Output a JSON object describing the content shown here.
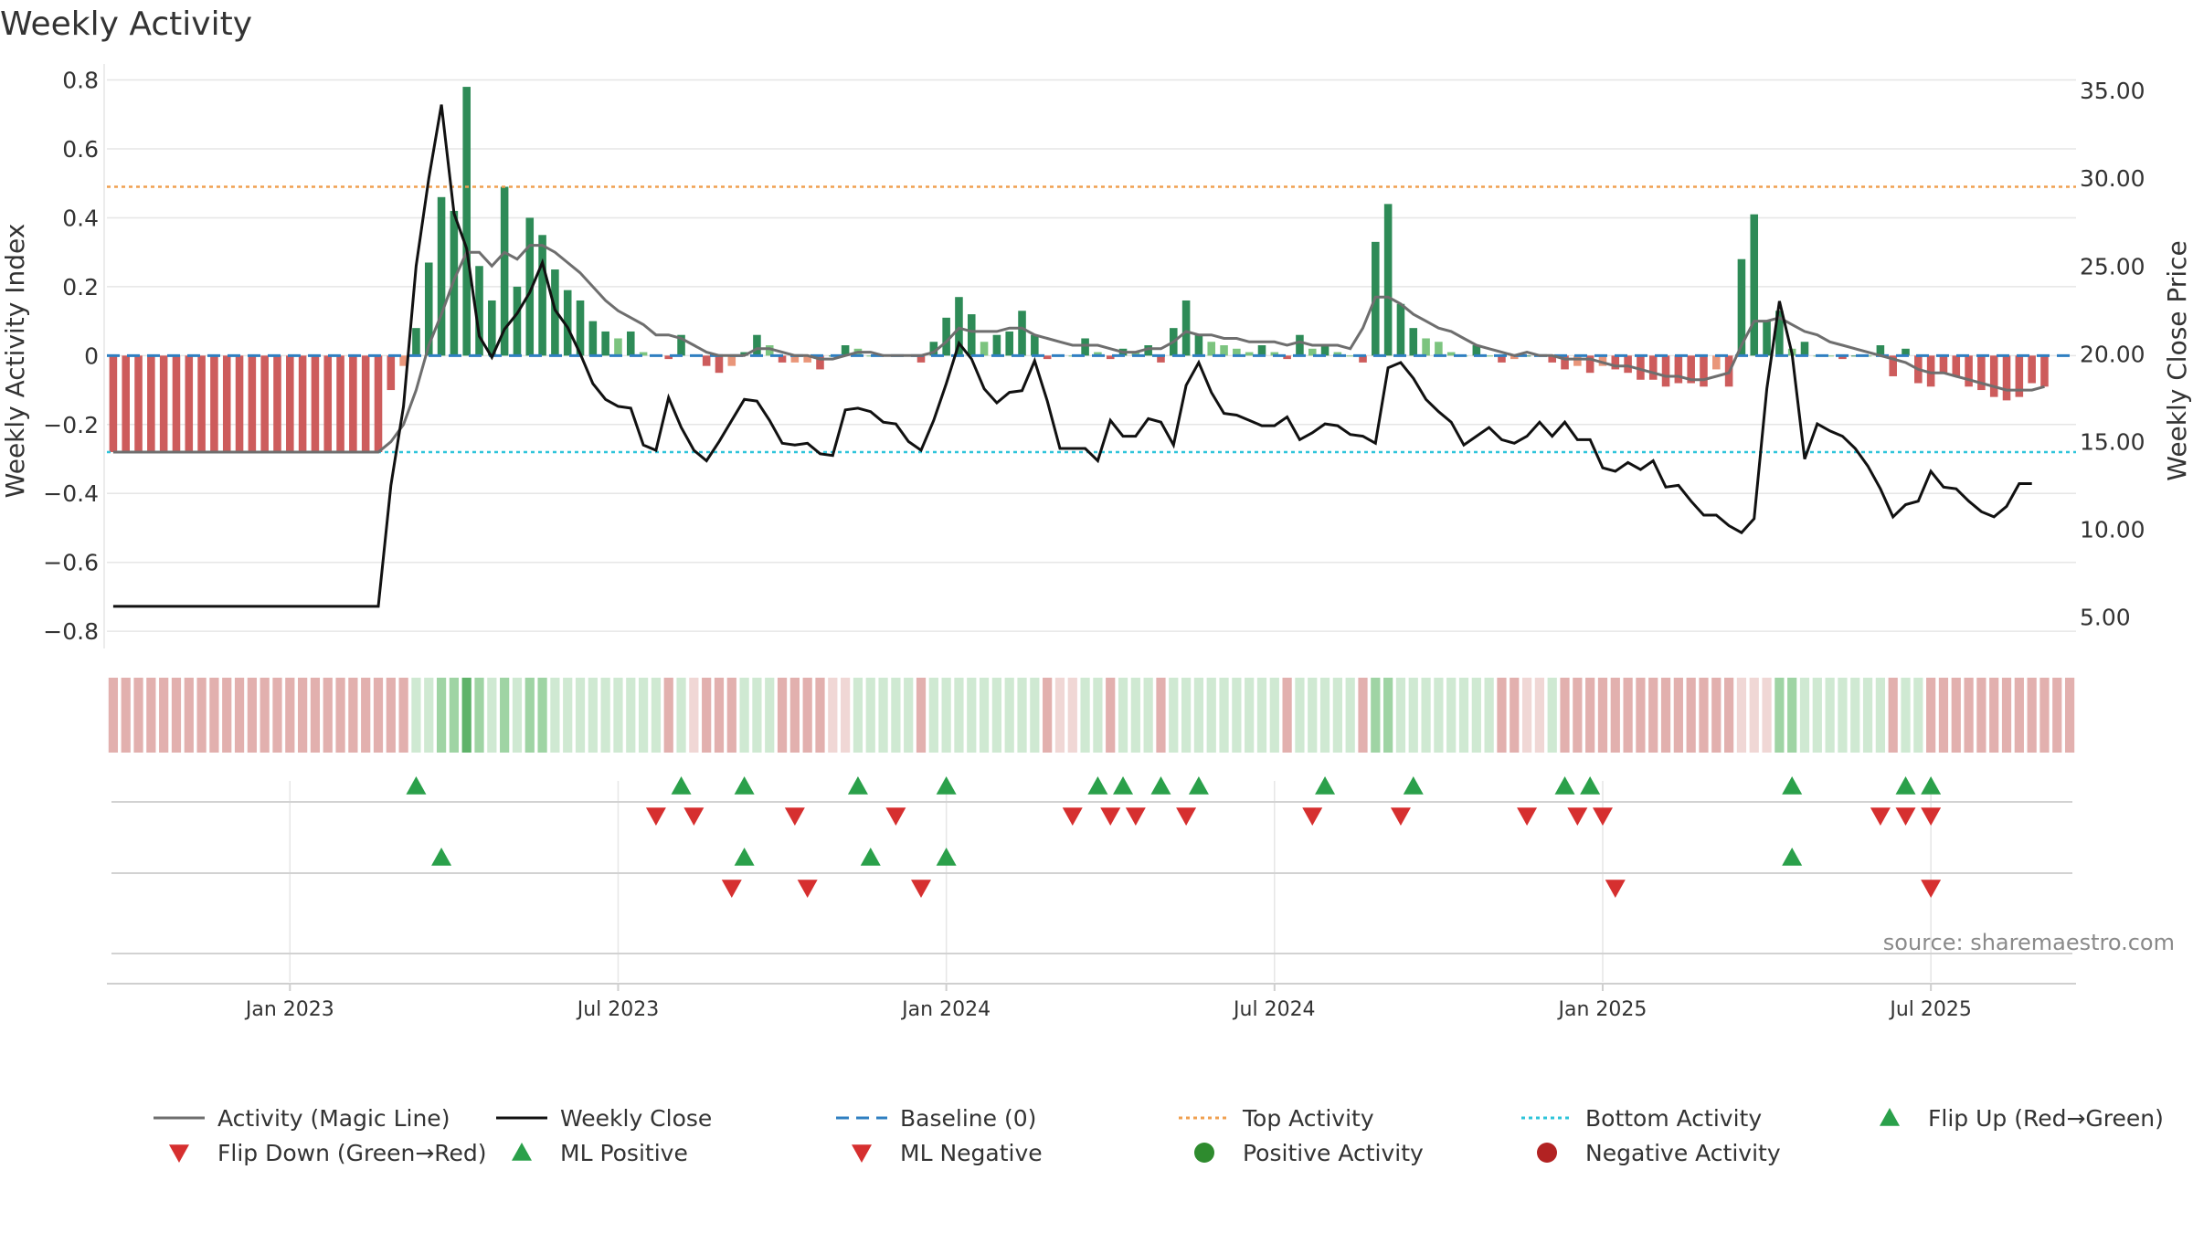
{
  "chart_data": {
    "type": "bar",
    "title": "Weekly Activity",
    "ylabel": "Weekly Activity Index",
    "y2label": "Weekly Close Price",
    "ylim": [
      -0.85,
      0.82
    ],
    "y2lim": [
      3.2,
      36.0
    ],
    "y_ticks": [
      0.8,
      0.6,
      0.4,
      0.2,
      0,
      -0.2,
      -0.4,
      -0.6,
      -0.8
    ],
    "y_tick_labels": [
      "0.8",
      "0.6",
      "0.4",
      "0.2",
      "0",
      "−0.2",
      "−0.4",
      "−0.6",
      "−0.8"
    ],
    "y2_ticks": [
      35,
      30,
      25,
      20,
      15,
      10,
      5
    ],
    "y2_tick_labels": [
      "35.00",
      "30.00",
      "25.00",
      "20.00",
      "15.00",
      "10.00",
      "5.00"
    ],
    "x_ticks": [
      {
        "week": 14,
        "label": "Jan 2023"
      },
      {
        "week": 40,
        "label": "Jul 2023"
      },
      {
        "week": 66,
        "label": "Jan 2024"
      },
      {
        "week": 92,
        "label": "Jul 2024"
      },
      {
        "week": 118,
        "label": "Jan 2025"
      },
      {
        "week": 144,
        "label": "Jul 2025"
      }
    ],
    "weeks": 156,
    "top_activity": 0.49,
    "bottom_activity": -0.28,
    "activity": [
      -0.28,
      -0.28,
      -0.28,
      -0.28,
      -0.28,
      -0.28,
      -0.28,
      -0.28,
      -0.28,
      -0.28,
      -0.28,
      -0.28,
      -0.28,
      -0.28,
      -0.28,
      -0.28,
      -0.28,
      -0.28,
      -0.28,
      -0.28,
      -0.28,
      -0.28,
      -0.1,
      -0.03,
      0.08,
      0.27,
      0.46,
      0.42,
      0.78,
      0.26,
      0.16,
      0.49,
      0.2,
      0.4,
      0.35,
      0.25,
      0.19,
      0.16,
      0.1,
      0.07,
      0.05,
      0.07,
      0.01,
      0.0,
      -0.01,
      0.06,
      0.0,
      -0.03,
      -0.05,
      -0.03,
      0.01,
      0.06,
      0.03,
      -0.02,
      -0.02,
      -0.02,
      -0.04,
      0.0,
      0.03,
      0.02,
      0.0,
      0.0,
      0.0,
      0.0,
      -0.02,
      0.04,
      0.11,
      0.17,
      0.12,
      0.04,
      0.06,
      0.07,
      0.13,
      0.06,
      -0.01,
      0.0,
      0.0,
      0.05,
      0.01,
      -0.01,
      0.02,
      0.01,
      0.03,
      -0.02,
      0.08,
      0.16,
      0.06,
      0.04,
      0.03,
      0.02,
      0.01,
      0.03,
      0.01,
      -0.01,
      0.06,
      0.02,
      0.03,
      0.01,
      0.0,
      -0.02,
      0.33,
      0.44,
      0.15,
      0.08,
      0.05,
      0.04,
      0.01,
      0.0,
      0.03,
      0.0,
      -0.02,
      -0.01,
      0.0,
      0.0,
      -0.02,
      -0.04,
      -0.03,
      -0.05,
      -0.03,
      -0.04,
      -0.05,
      -0.07,
      -0.07,
      -0.09,
      -0.08,
      -0.08,
      -0.09,
      -0.04,
      -0.09,
      0.28,
      0.41,
      0.1,
      0.13,
      0.02,
      0.04,
      0.0,
      0.0,
      -0.01,
      0.0,
      0.0,
      0.03,
      -0.06,
      0.02,
      -0.08,
      -0.09,
      -0.05,
      -0.06,
      -0.09,
      -0.1,
      -0.12,
      -0.13,
      -0.12,
      -0.08,
      -0.09
    ],
    "magic_line": [
      -0.28,
      -0.28,
      -0.28,
      -0.28,
      -0.28,
      -0.28,
      -0.28,
      -0.28,
      -0.28,
      -0.28,
      -0.28,
      -0.28,
      -0.28,
      -0.28,
      -0.28,
      -0.28,
      -0.28,
      -0.28,
      -0.28,
      -0.28,
      -0.28,
      -0.28,
      -0.25,
      -0.2,
      -0.1,
      0.03,
      0.12,
      0.22,
      0.3,
      0.3,
      0.26,
      0.3,
      0.28,
      0.32,
      0.32,
      0.3,
      0.27,
      0.24,
      0.2,
      0.16,
      0.13,
      0.11,
      0.09,
      0.06,
      0.06,
      0.05,
      0.03,
      0.01,
      0.0,
      0.0,
      0.0,
      0.02,
      0.02,
      0.01,
      0.0,
      0.0,
      -0.01,
      -0.01,
      0.0,
      0.01,
      0.01,
      0.0,
      0.0,
      0.0,
      0.0,
      0.01,
      0.04,
      0.08,
      0.07,
      0.07,
      0.07,
      0.08,
      0.08,
      0.06,
      0.05,
      0.04,
      0.03,
      0.03,
      0.03,
      0.02,
      0.01,
      0.01,
      0.02,
      0.02,
      0.04,
      0.07,
      0.06,
      0.06,
      0.05,
      0.05,
      0.04,
      0.04,
      0.04,
      0.03,
      0.04,
      0.03,
      0.03,
      0.03,
      0.02,
      0.08,
      0.17,
      0.17,
      0.15,
      0.12,
      0.1,
      0.08,
      0.07,
      0.05,
      0.03,
      0.02,
      0.01,
      0.0,
      0.01,
      0.0,
      0.0,
      -0.01,
      -0.01,
      -0.01,
      -0.02,
      -0.03,
      -0.03,
      -0.04,
      -0.05,
      -0.06,
      -0.06,
      -0.07,
      -0.07,
      -0.06,
      -0.05,
      0.03,
      0.1,
      0.1,
      0.11,
      0.09,
      0.07,
      0.06,
      0.04,
      0.03,
      0.02,
      0.01,
      0.0,
      -0.01,
      -0.02,
      -0.04,
      -0.05,
      -0.05,
      -0.06,
      -0.07,
      -0.08,
      -0.09,
      -0.1,
      -0.1,
      -0.1,
      -0.09
    ],
    "weekly_close": [
      5.6,
      5.6,
      5.6,
      5.6,
      5.6,
      5.6,
      5.6,
      5.6,
      5.6,
      5.6,
      5.6,
      5.6,
      5.6,
      5.6,
      5.6,
      5.6,
      5.6,
      5.6,
      5.6,
      5.6,
      5.6,
      5.6,
      12.5,
      17.0,
      25.0,
      30.0,
      34.2,
      28.0,
      26.0,
      21.0,
      19.8,
      21.4,
      22.3,
      23.5,
      25.2,
      22.5,
      21.5,
      20.0,
      18.3,
      17.4,
      17.0,
      16.9,
      14.8,
      14.5,
      17.5,
      15.8,
      14.5,
      13.9,
      15.0,
      16.2,
      17.4,
      17.3,
      16.2,
      14.9,
      14.8,
      14.9,
      14.3,
      14.2,
      16.8,
      16.9,
      16.7,
      16.1,
      16.0,
      15.0,
      14.5,
      16.2,
      18.3,
      20.6,
      19.7,
      18.0,
      17.2,
      17.8,
      17.9,
      19.6,
      17.3,
      14.6,
      14.6,
      14.6,
      13.9,
      16.2,
      15.3,
      15.3,
      16.3,
      16.1,
      14.8,
      18.2,
      19.5,
      17.8,
      16.6,
      16.5,
      16.2,
      15.9,
      15.9,
      16.4,
      15.1,
      15.5,
      16.0,
      15.9,
      15.4,
      15.3,
      14.9,
      19.2,
      19.5,
      18.6,
      17.4,
      16.7,
      16.1,
      14.8,
      15.3,
      15.8,
      15.1,
      14.9,
      15.3,
      16.1,
      15.3,
      16.1,
      15.1,
      15.1,
      13.5,
      13.3,
      13.8,
      13.4,
      13.9,
      12.4,
      12.5,
      11.6,
      10.8,
      10.8,
      10.2,
      9.8,
      10.6,
      18.0,
      23.0,
      20.0,
      14.0,
      16.0,
      15.6,
      15.3,
      14.6,
      13.6,
      12.3,
      10.7,
      11.4,
      11.6,
      13.3,
      12.4,
      12.3,
      11.6,
      11.0,
      10.7,
      11.3,
      12.6,
      12.6
    ],
    "strip_flags": [
      0,
      0,
      0,
      0,
      0,
      0,
      0,
      0,
      0,
      0,
      0,
      0,
      0,
      0,
      0,
      0,
      0,
      0,
      0,
      0,
      0,
      0,
      0,
      0,
      1,
      1,
      2,
      2,
      3,
      2,
      1,
      2,
      1,
      2,
      2,
      1,
      1,
      1,
      1,
      1,
      1,
      1,
      1,
      1,
      0,
      1,
      0,
      0,
      0,
      0,
      1,
      1,
      1,
      0,
      0,
      0,
      0,
      0,
      0,
      1,
      1,
      1,
      1,
      1,
      0,
      1,
      1,
      1,
      1,
      1,
      1,
      1,
      1,
      1,
      0,
      0,
      0,
      1,
      1,
      0,
      1,
      1,
      1,
      0,
      1,
      1,
      1,
      1,
      1,
      1,
      1,
      1,
      1,
      0,
      1,
      1,
      1,
      1,
      1,
      0,
      2,
      2,
      1,
      1,
      1,
      1,
      1,
      1,
      1,
      1,
      0,
      0,
      0,
      0,
      1,
      0,
      0,
      0,
      0,
      0,
      0,
      0,
      0,
      0,
      0,
      0,
      0,
      0,
      0,
      0,
      0,
      0,
      2,
      2,
      1,
      1,
      1,
      1,
      1,
      1,
      1,
      0,
      1,
      1,
      0,
      0,
      0,
      0,
      0,
      0,
      0,
      0,
      0,
      0,
      0,
      0
    ],
    "flip_up_weeks": [
      24,
      45,
      50,
      59,
      66,
      78,
      80,
      83,
      86,
      96,
      103,
      115,
      117,
      133,
      142,
      144
    ],
    "flip_down_weeks": [
      43,
      46,
      54,
      62,
      76,
      79,
      81,
      85,
      95,
      102,
      112,
      116,
      118,
      140,
      142,
      144
    ],
    "ml_positive_weeks": [
      26,
      50,
      60,
      66,
      133
    ],
    "ml_negative_weeks": [
      49,
      55,
      64,
      119,
      144
    ],
    "source": "source: sharemaestro.com",
    "legend": [
      {
        "label": "Activity (Magic Line)",
        "type": "line",
        "color": "#6e6e6e",
        "dash": ""
      },
      {
        "label": "Weekly Close",
        "type": "line",
        "color": "#111111",
        "dash": ""
      },
      {
        "label": "Baseline (0)",
        "type": "line",
        "color": "#2f7fc1",
        "dash": "14,8"
      },
      {
        "label": "Top Activity",
        "type": "line",
        "color": "#f0a050",
        "dash": "4,4"
      },
      {
        "label": "Bottom Activity",
        "type": "line",
        "color": "#2ec4da",
        "dash": "4,4"
      },
      {
        "label": "Flip Up (Red→Green)",
        "type": "up",
        "color": "#2aa04a"
      },
      {
        "label": "Flip Down (Green→Red)",
        "type": "down",
        "color": "#d62f2f"
      },
      {
        "label": "ML Positive",
        "type": "up",
        "color": "#2aa04a"
      },
      {
        "label": "ML Negative",
        "type": "down",
        "color": "#d62f2f"
      },
      {
        "label": "Positive Activity",
        "type": "dot",
        "color": "#2e8b2e"
      },
      {
        "label": "Negative Activity",
        "type": "dot",
        "color": "#b22222"
      }
    ],
    "colors": {
      "bar_green_strong": "#2e8b57",
      "bar_green_light": "#7cc47f",
      "bar_red_strong": "#cd5c5c",
      "bar_red_light": "#e9967a",
      "strip_green_1": "#cfe9d2",
      "strip_green_2": "#9fd4a4",
      "strip_green_3": "#5fb36a",
      "strip_red": "#e2b0ae",
      "grid": "#e6e6e6",
      "axis": "#cfcfcf",
      "text": "#333333",
      "source": "#8a8a8a"
    }
  }
}
